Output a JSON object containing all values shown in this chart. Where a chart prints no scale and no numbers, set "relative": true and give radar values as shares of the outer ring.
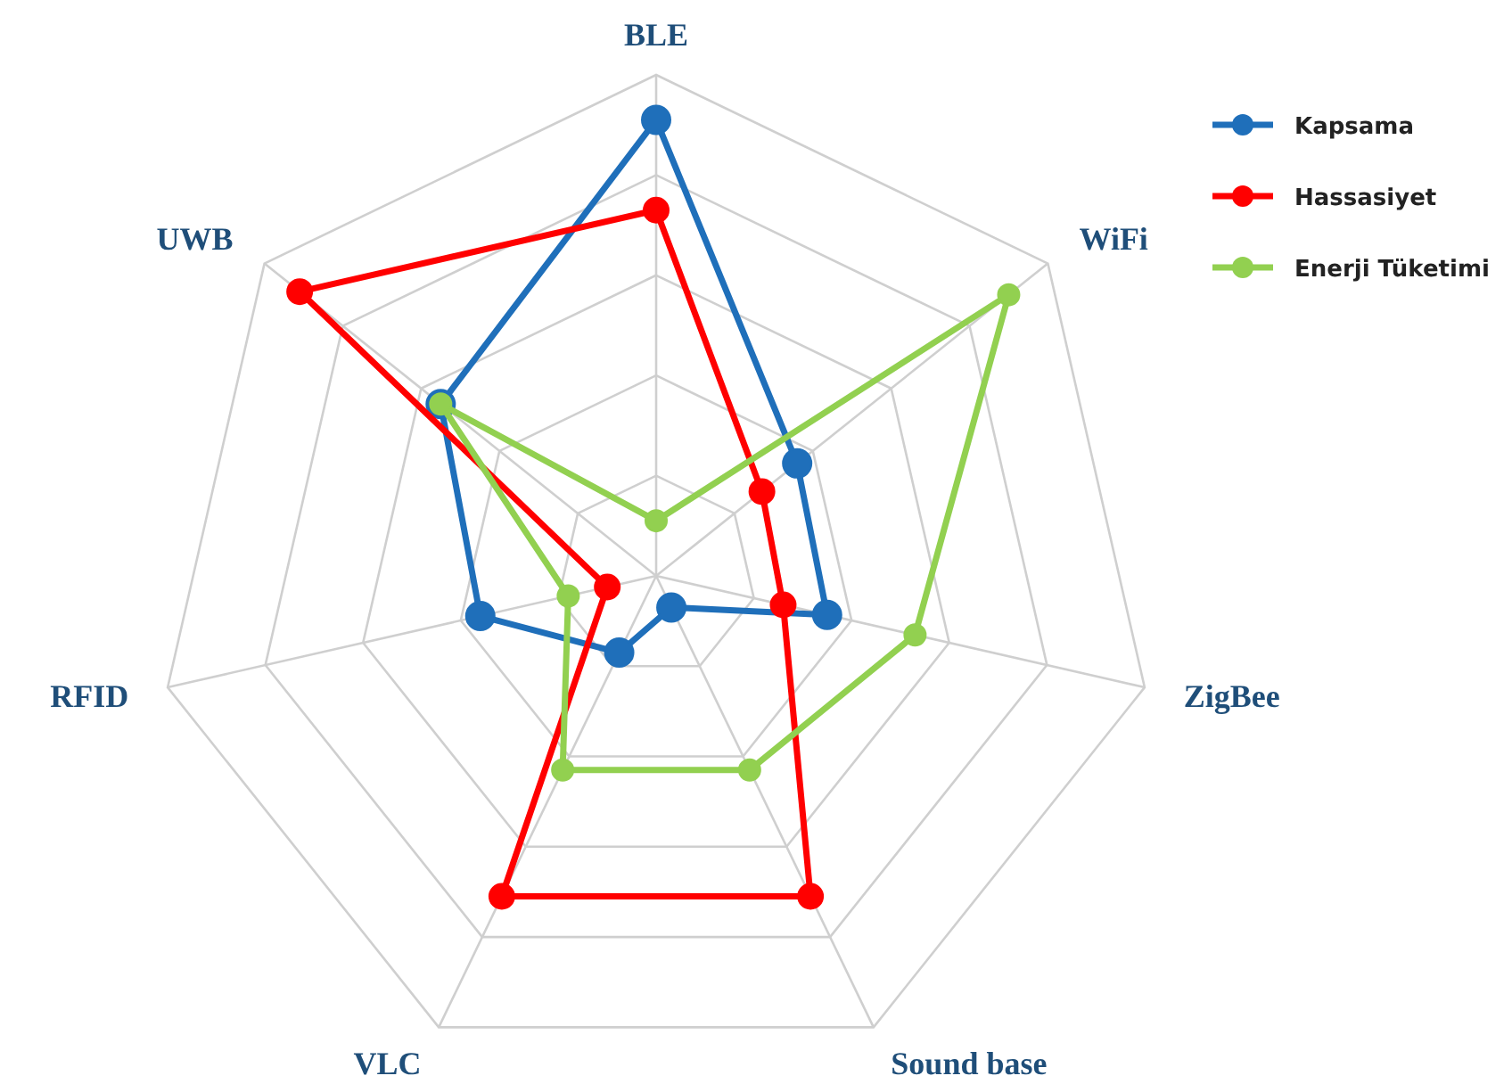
{
  "chart_data": {
    "type": "radar",
    "relative": true,
    "grid": true,
    "legend": "top right",
    "marker": "circle",
    "line_style": "solid",
    "categories": [
      "BLE",
      "WiFi",
      "ZigBee",
      "Sound base",
      "VLC",
      "RFID",
      "UWB"
    ],
    "series": [
      {
        "name": "Kapsama",
        "color": "#1f6fba",
        "values": [
          0.91,
          0.36,
          0.35,
          0.07,
          0.17,
          0.36,
          0.55
        ]
      },
      {
        "name": "Hassasiyet",
        "color": "#ff0000",
        "values": [
          0.73,
          0.27,
          0.26,
          0.71,
          0.71,
          0.1,
          0.91
        ]
      },
      {
        "name": "Enerji Tüketimi",
        "color": "#92d050",
        "values": [
          0.11,
          0.9,
          0.53,
          0.43,
          0.43,
          0.18,
          0.55
        ]
      }
    ]
  }
}
